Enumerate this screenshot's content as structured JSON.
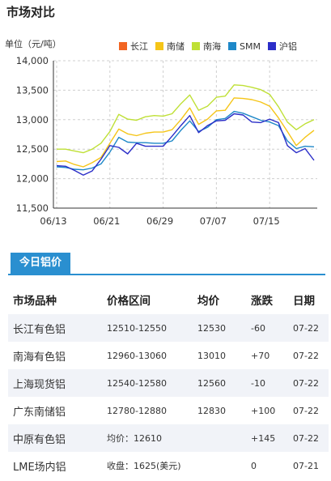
{
  "section_title": "市场对比",
  "chart_data": {
    "type": "line",
    "ylabel": "单位（元/吨）",
    "ylim": [
      11500,
      14000
    ],
    "y_ticks": [
      "11,500",
      "12,000",
      "12,500",
      "13,000",
      "13,500",
      "14,000"
    ],
    "y_tick_values": [
      11500,
      12000,
      12500,
      13000,
      13500,
      14000
    ],
    "x_tick_labels": [
      "06/13",
      "06/21",
      "06/29",
      "07/07",
      "07/15"
    ],
    "x_tick_index": [
      0,
      6,
      12,
      18,
      24
    ],
    "grid": true,
    "legend_position": "top-right",
    "series": [
      {
        "name": "长江",
        "color": "#f26522",
        "values": []
      },
      {
        "name": "南储",
        "color": "#f5c518",
        "values": [
          12290,
          12300,
          12240,
          12200,
          12270,
          12360,
          12600,
          12840,
          12760,
          12730,
          12770,
          12790,
          12790,
          12830,
          13000,
          13200,
          12920,
          13010,
          13150,
          13160,
          13370,
          13360,
          13340,
          13300,
          13230,
          13030,
          12800,
          12560,
          12700,
          12820
        ]
      },
      {
        "name": "南海",
        "color": "#bfe036",
        "values": [
          12500,
          12500,
          12470,
          12440,
          12500,
          12600,
          12800,
          13090,
          13010,
          12990,
          13050,
          13070,
          13060,
          13100,
          13270,
          13420,
          13160,
          13230,
          13380,
          13400,
          13590,
          13580,
          13550,
          13510,
          13430,
          13220,
          12960,
          12830,
          12930,
          13000
        ]
      },
      {
        "name": "SMM",
        "color": "#1e88c8",
        "values": [
          12200,
          12190,
          12160,
          12150,
          12180,
          12250,
          12450,
          12700,
          12620,
          12610,
          12610,
          12600,
          12600,
          12640,
          12820,
          12980,
          12800,
          12870,
          13000,
          13020,
          13140,
          13110,
          13050,
          12990,
          12960,
          12900,
          12640,
          12510,
          12550,
          12540
        ]
      },
      {
        "name": "沪铝",
        "color": "#2b2ec8",
        "values": [
          12220,
          12210,
          12140,
          12060,
          12130,
          12330,
          12560,
          12530,
          12420,
          12600,
          12550,
          12550,
          12550,
          12720,
          12900,
          13070,
          12780,
          12900,
          12980,
          12990,
          13100,
          13080,
          12960,
          12950,
          13010,
          12950,
          12560,
          12440,
          12510,
          12310
        ]
      }
    ]
  },
  "tab_label": "今日铝价",
  "table": {
    "headers": [
      "市场品种",
      "价格区间",
      "均价",
      "涨跌",
      "日期"
    ],
    "rows": [
      {
        "market": "长江有色铝",
        "range": "12510-12550",
        "avg": "12530",
        "change": "-60",
        "dir": "down",
        "date": "07-22"
      },
      {
        "market": "南海有色铝",
        "range": "12960-13060",
        "avg": "13010",
        "change": "+70",
        "dir": "up",
        "date": "07-22"
      },
      {
        "market": "上海现货铝",
        "range": "12540-12580",
        "avg": "12560",
        "change": "-10",
        "dir": "down",
        "date": "07-22"
      },
      {
        "market": "广东南储铝",
        "range": "12780-12880",
        "avg": "12830",
        "change": "+100",
        "dir": "up",
        "date": "07-22"
      },
      {
        "market": "中原有色铝",
        "range": "均价：12610",
        "avg": "",
        "change": "+145",
        "dir": "up",
        "date": "07-22"
      },
      {
        "market": "LME场内铝",
        "range": "收盘：1625(美元)",
        "avg": "",
        "change": "0",
        "dir": "zero",
        "date": "07-21"
      }
    ]
  }
}
